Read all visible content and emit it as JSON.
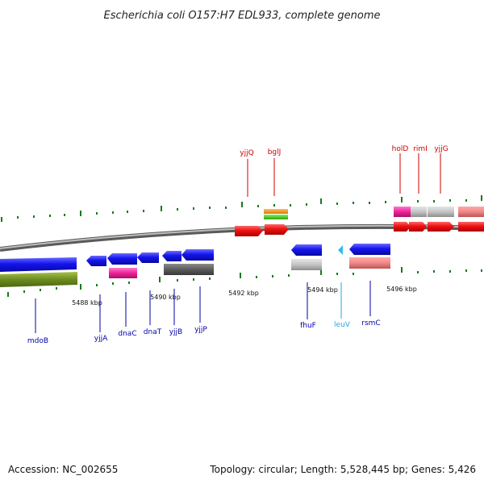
{
  "header": {
    "title": "Escherichia coli O157:H7 EDL933, complete genome"
  },
  "footer": {
    "accession": "Accession: NC_002655",
    "summary": "Topology: circular; Length: 5,528,445 bp; Genes: 5,426"
  },
  "scale": {
    "ticks": [
      "5488 kbp",
      "5490 kbp",
      "5492 kbp",
      "5494 kbp",
      "5496 kbp"
    ]
  },
  "genes_above": [
    {
      "name": "yjjQ",
      "color": "#cc0000"
    },
    {
      "name": "bglJ",
      "color": "#cc0000"
    },
    {
      "name": "holD",
      "color": "#cc0000"
    },
    {
      "name": "rimI",
      "color": "#cc0000"
    },
    {
      "name": "yjjG",
      "color": "#cc0000"
    }
  ],
  "genes_below": [
    {
      "name": "mdoB",
      "color": "#0000aa"
    },
    {
      "name": "yjjA",
      "color": "#0000aa"
    },
    {
      "name": "dnaC",
      "color": "#0000aa"
    },
    {
      "name": "dnaT",
      "color": "#0000aa"
    },
    {
      "name": "yjjB",
      "color": "#0000aa"
    },
    {
      "name": "yjjP",
      "color": "#0000aa"
    },
    {
      "name": "fhuF",
      "color": "#0000aa"
    },
    {
      "name": "leuV",
      "color": "#22aadd"
    },
    {
      "name": "rsmC",
      "color": "#0000aa"
    }
  ],
  "colors": {
    "forward_gene": "#ee1111",
    "reverse_gene": "#1a1aee",
    "backbone": "#777777",
    "tick": "#1a7a1a",
    "trna": "#33bbee"
  }
}
